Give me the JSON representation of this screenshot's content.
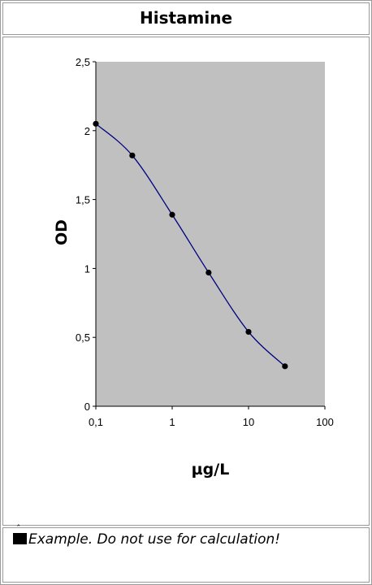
{
  "page": {
    "title": "Histamine"
  },
  "note": {
    "text": "Example. Do not use for calculation!"
  },
  "chart_data": {
    "type": "scatter",
    "title": "Histamine",
    "xlabel": "µg/L",
    "ylabel": "OD",
    "x_scale": "log",
    "xlim": [
      0.1,
      100
    ],
    "ylim": [
      0,
      2.5
    ],
    "x_ticks": [
      0.1,
      1,
      10,
      100
    ],
    "x_tick_labels": [
      "0,1",
      "1",
      "10",
      "100"
    ],
    "y_ticks": [
      0,
      0.5,
      1,
      1.5,
      2,
      2.5
    ],
    "y_tick_labels": [
      "0",
      "0,5",
      "1",
      "1,5",
      "2",
      "2,5"
    ],
    "plot_background": "#c0c0c0",
    "line_color": "#000080",
    "marker_color": "#000000",
    "grid": false,
    "legend": "none",
    "series": [
      {
        "x": [
          0.1,
          0.3,
          1,
          3,
          10,
          30
        ],
        "y": [
          2.05,
          1.82,
          1.39,
          0.97,
          0.54,
          0.29
        ],
        "fit": "smooth curve"
      }
    ]
  }
}
